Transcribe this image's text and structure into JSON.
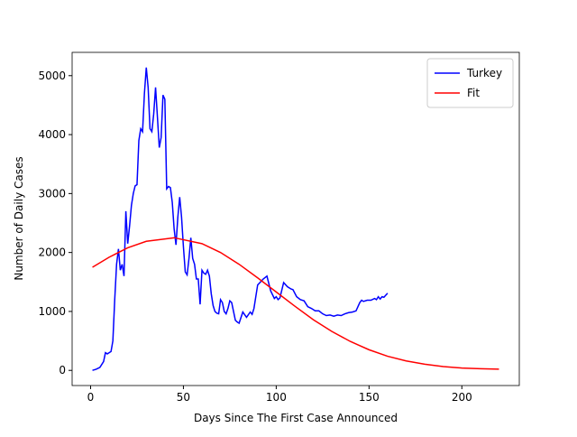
{
  "chart_data": {
    "type": "line",
    "xlabel": "Days Since The First Case Announced",
    "ylabel": "Number of Daily Cases",
    "xlim": [
      -9.95,
      230.95
    ],
    "xticks": [
      0,
      50,
      100,
      150,
      200
    ],
    "ylim": [
      -257,
      5395
    ],
    "yticks": [
      0,
      1000,
      2000,
      3000,
      4000,
      5000
    ],
    "legend": "upper right",
    "series": [
      {
        "name": "Turkey",
        "color": "#0000ff",
        "x": [
          1,
          3,
          5,
          7,
          8,
          9,
          10,
          11,
          12,
          13,
          14,
          15,
          16,
          17,
          18,
          19,
          20,
          21,
          22,
          23,
          24,
          25,
          26,
          27,
          28,
          29,
          30,
          31,
          32,
          33,
          34,
          35,
          36,
          37,
          38,
          39,
          40,
          41,
          42,
          43,
          44,
          45,
          46,
          47,
          48,
          49,
          50,
          51,
          52,
          53,
          54,
          55,
          56,
          57,
          58,
          59,
          60,
          61,
          62,
          63,
          64,
          65,
          66,
          67,
          68,
          69,
          70,
          71,
          72,
          73,
          74,
          75,
          76,
          77,
          78,
          79,
          80,
          82,
          84,
          86,
          87,
          88,
          90,
          93,
          95,
          97,
          99,
          100,
          101,
          102,
          104,
          106,
          108,
          109,
          111,
          113,
          115,
          117,
          119,
          121,
          123,
          125,
          127,
          129,
          131,
          133,
          135,
          137,
          139,
          141,
          143,
          145,
          146,
          147,
          149,
          151,
          153,
          154,
          155,
          156,
          157,
          158,
          160
        ],
        "values": [
          1,
          20,
          50,
          150,
          300,
          280,
          300,
          320,
          500,
          1200,
          1800,
          2060,
          1700,
          1800,
          1600,
          2700,
          2150,
          2450,
          2800,
          3000,
          3130,
          3150,
          3900,
          4100,
          4050,
          4700,
          5138,
          4800,
          4100,
          4050,
          4350,
          4800,
          4300,
          3780,
          3950,
          4670,
          4600,
          3080,
          3120,
          3100,
          2850,
          2400,
          2130,
          2600,
          2940,
          2600,
          2100,
          1670,
          1620,
          1900,
          2250,
          1900,
          1800,
          1550,
          1550,
          1120,
          1700,
          1650,
          1630,
          1700,
          1600,
          1300,
          1100,
          1000,
          970,
          960,
          1200,
          1150,
          1000,
          960,
          1050,
          1180,
          1150,
          1000,
          850,
          820,
          800,
          990,
          900,
          990,
          950,
          1050,
          1450,
          1550,
          1600,
          1350,
          1220,
          1250,
          1200,
          1230,
          1490,
          1420,
          1380,
          1370,
          1250,
          1200,
          1180,
          1080,
          1050,
          1010,
          1010,
          960,
          930,
          940,
          920,
          940,
          930,
          960,
          980,
          990,
          1010,
          1150,
          1190,
          1170,
          1190,
          1190,
          1220,
          1200,
          1250,
          1210,
          1250,
          1240,
          1310
        ]
      },
      {
        "name": "Fit",
        "color": "#ff0000",
        "x": [
          1,
          10,
          20,
          30,
          45,
          60,
          70,
          80,
          90,
          100,
          110,
          120,
          130,
          140,
          150,
          160,
          170,
          180,
          190,
          200,
          210,
          220
        ],
        "values": [
          1750,
          1920,
          2080,
          2190,
          2250,
          2150,
          2000,
          1800,
          1570,
          1330,
          1090,
          860,
          660,
          490,
          350,
          240,
          160,
          105,
          65,
          40,
          28,
          20
        ]
      }
    ]
  }
}
